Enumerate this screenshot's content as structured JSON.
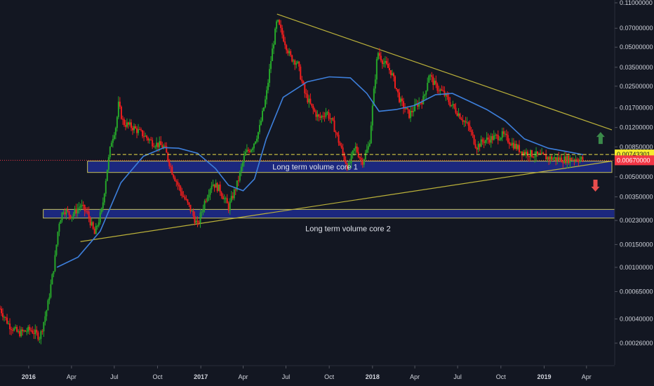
{
  "chart_data": {
    "type": "candlestick",
    "y_scale": "log",
    "ylim": [
      0.0002,
      0.11
    ],
    "x_range": [
      "2015-11-01",
      "2019-05-31"
    ],
    "x_ticks": [
      {
        "label": "2016",
        "date": "2016-01-01",
        "year": true
      },
      {
        "label": "Apr",
        "date": "2016-04-01"
      },
      {
        "label": "Jul",
        "date": "2016-07-01"
      },
      {
        "label": "Oct",
        "date": "2016-10-01"
      },
      {
        "label": "2017",
        "date": "2017-01-01",
        "year": true
      },
      {
        "label": "Apr",
        "date": "2017-04-01"
      },
      {
        "label": "Jul",
        "date": "2017-07-01"
      },
      {
        "label": "Oct",
        "date": "2017-10-01"
      },
      {
        "label": "2018",
        "date": "2018-01-01",
        "year": true
      },
      {
        "label": "Apr",
        "date": "2018-04-01"
      },
      {
        "label": "Jul",
        "date": "2018-07-01"
      },
      {
        "label": "Oct",
        "date": "2018-10-01"
      },
      {
        "label": "2019",
        "date": "2019-01-01",
        "year": true
      },
      {
        "label": "Apr",
        "date": "2019-04-01"
      }
    ],
    "y_ticks": [
      {
        "label": "0.11000000",
        "value": 0.11
      },
      {
        "label": "0.07000000",
        "value": 0.07
      },
      {
        "label": "0.05000000",
        "value": 0.05
      },
      {
        "label": "0.03500000",
        "value": 0.035
      },
      {
        "label": "0.02500000",
        "value": 0.025
      },
      {
        "label": "0.01700000",
        "value": 0.017
      },
      {
        "label": "0.01200000",
        "value": 0.012
      },
      {
        "label": "0.00850000",
        "value": 0.0085
      },
      {
        "label": "0.00500000",
        "value": 0.005
      },
      {
        "label": "0.00350000",
        "value": 0.0035
      },
      {
        "label": "0.00230000",
        "value": 0.0023
      },
      {
        "label": "0.00150000",
        "value": 0.0015
      },
      {
        "label": "0.00100000",
        "value": 0.001
      },
      {
        "label": "0.00065000",
        "value": 0.00065
      },
      {
        "label": "0.00040000",
        "value": 0.0004
      },
      {
        "label": "0.00026000",
        "value": 0.00026
      }
    ],
    "price_path": [
      [
        "2015-11-01",
        0.00048
      ],
      [
        "2015-11-20",
        0.00036
      ],
      [
        "2015-12-10",
        0.00031
      ],
      [
        "2016-01-05",
        0.00033
      ],
      [
        "2016-01-25",
        0.00029
      ],
      [
        "2016-02-10",
        0.0005
      ],
      [
        "2016-02-25",
        0.0011
      ],
      [
        "2016-03-05",
        0.0022
      ],
      [
        "2016-03-15",
        0.0028
      ],
      [
        "2016-04-01",
        0.0025
      ],
      [
        "2016-04-20",
        0.003
      ],
      [
        "2016-05-05",
        0.0026
      ],
      [
        "2016-05-20",
        0.0018
      ],
      [
        "2016-06-05",
        0.0028
      ],
      [
        "2016-06-15",
        0.0055
      ],
      [
        "2016-06-25",
        0.0095
      ],
      [
        "2016-07-05",
        0.0125
      ],
      [
        "2016-07-10",
        0.018
      ],
      [
        "2016-07-20",
        0.013
      ],
      [
        "2016-08-10",
        0.012
      ],
      [
        "2016-09-01",
        0.0105
      ],
      [
        "2016-09-20",
        0.0092
      ],
      [
        "2016-10-15",
        0.0085
      ],
      [
        "2016-11-01",
        0.0055
      ],
      [
        "2016-11-20",
        0.0038
      ],
      [
        "2016-12-10",
        0.0028
      ],
      [
        "2016-12-25",
        0.0021
      ],
      [
        "2017-01-10",
        0.0033
      ],
      [
        "2017-01-25",
        0.0045
      ],
      [
        "2017-02-10",
        0.004
      ],
      [
        "2017-03-01",
        0.0029
      ],
      [
        "2017-03-20",
        0.0045
      ],
      [
        "2017-04-05",
        0.0075
      ],
      [
        "2017-04-20",
        0.0085
      ],
      [
        "2017-05-05",
        0.0115
      ],
      [
        "2017-05-20",
        0.021
      ],
      [
        "2017-06-01",
        0.045
      ],
      [
        "2017-06-12",
        0.08
      ],
      [
        "2017-06-25",
        0.06
      ],
      [
        "2017-07-10",
        0.042
      ],
      [
        "2017-07-25",
        0.038
      ],
      [
        "2017-08-10",
        0.022
      ],
      [
        "2017-08-25",
        0.017
      ],
      [
        "2017-09-10",
        0.014
      ],
      [
        "2017-09-25",
        0.016
      ],
      [
        "2017-10-10",
        0.0125
      ],
      [
        "2017-10-25",
        0.0085
      ],
      [
        "2017-11-10",
        0.0058
      ],
      [
        "2017-11-25",
        0.0085
      ],
      [
        "2017-12-10",
        0.0065
      ],
      [
        "2017-12-25",
        0.0088
      ],
      [
        "2018-01-05",
        0.025
      ],
      [
        "2018-01-12",
        0.046
      ],
      [
        "2018-01-25",
        0.038
      ],
      [
        "2018-02-10",
        0.032
      ],
      [
        "2018-03-01",
        0.019
      ],
      [
        "2018-03-20",
        0.015
      ],
      [
        "2018-04-05",
        0.018
      ],
      [
        "2018-04-20",
        0.02
      ],
      [
        "2018-05-01",
        0.031
      ],
      [
        "2018-05-15",
        0.025
      ],
      [
        "2018-06-01",
        0.022
      ],
      [
        "2018-06-15",
        0.0185
      ],
      [
        "2018-07-05",
        0.015
      ],
      [
        "2018-07-25",
        0.012
      ],
      [
        "2018-08-10",
        0.0085
      ],
      [
        "2018-08-25",
        0.0095
      ],
      [
        "2018-09-15",
        0.01
      ],
      [
        "2018-10-05",
        0.0105
      ],
      [
        "2018-10-25",
        0.009
      ],
      [
        "2018-11-15",
        0.0078
      ],
      [
        "2018-12-10",
        0.0074
      ],
      [
        "2019-01-10",
        0.007
      ],
      [
        "2019-02-10",
        0.0068
      ],
      [
        "2019-03-10",
        0.0069
      ],
      [
        "2019-03-25",
        0.0068
      ]
    ],
    "moving_average": [
      [
        "2016-03-01",
        0.001
      ],
      [
        "2016-04-15",
        0.0012
      ],
      [
        "2016-06-01",
        0.0019
      ],
      [
        "2016-07-15",
        0.0045
      ],
      [
        "2016-09-01",
        0.0072
      ],
      [
        "2016-10-15",
        0.0084
      ],
      [
        "2016-11-15",
        0.0083
      ],
      [
        "2016-12-25",
        0.0076
      ],
      [
        "2017-02-01",
        0.0058
      ],
      [
        "2017-03-01",
        0.0043
      ],
      [
        "2017-04-01",
        0.0039
      ],
      [
        "2017-04-25",
        0.0048
      ],
      [
        "2017-05-20",
        0.0098
      ],
      [
        "2017-06-25",
        0.0205
      ],
      [
        "2017-08-15",
        0.027
      ],
      [
        "2017-10-01",
        0.0295
      ],
      [
        "2017-11-15",
        0.029
      ],
      [
        "2017-12-20",
        0.022
      ],
      [
        "2018-01-15",
        0.016
      ],
      [
        "2018-02-20",
        0.0165
      ],
      [
        "2018-04-01",
        0.0178
      ],
      [
        "2018-05-15",
        0.0215
      ],
      [
        "2018-06-20",
        0.022
      ],
      [
        "2018-07-25",
        0.0192
      ],
      [
        "2018-09-01",
        0.0165
      ],
      [
        "2018-10-10",
        0.0135
      ],
      [
        "2018-11-20",
        0.0098
      ],
      [
        "2019-01-10",
        0.0083
      ],
      [
        "2019-02-20",
        0.0078
      ],
      [
        "2019-03-25",
        0.0074
      ]
    ],
    "trendlines": [
      {
        "name": "descending",
        "color": "#bcb23a",
        "points": [
          [
            "2017-06-12",
            0.09
          ],
          [
            "2019-05-25",
            0.0115
          ]
        ]
      },
      {
        "name": "ascending",
        "color": "#bcb23a",
        "points": [
          [
            "2016-04-20",
            0.00158
          ],
          [
            "2019-05-25",
            0.0066
          ]
        ]
      }
    ],
    "zones": [
      {
        "label": "Long term volume core 1",
        "from": "2016-05-05",
        "to": "2019-05-25",
        "low": 0.0054,
        "high": 0.0066,
        "fill": "#1e2b8e",
        "stroke": "#c7c25a"
      },
      {
        "label": "Long term volume core 2",
        "from": "2016-02-01",
        "to": "2019-06-10",
        "low": 0.0024,
        "high": 0.0028,
        "fill": "#1e2b8e",
        "stroke": "#c7c25a"
      }
    ],
    "horizontal_lines": [
      {
        "value": 0.007433,
        "label": "0.00743301",
        "color": "#f0e24a",
        "style": "dashed",
        "tag_bg": "#f6ec2c",
        "tag_fg": "#131722"
      },
      {
        "value": 0.0067,
        "label": "0.00670000",
        "color": "#f23645",
        "style": "dotted",
        "tag_bg": "#f23645",
        "tag_fg": "#ffffff"
      }
    ],
    "arrows": [
      {
        "direction": "up",
        "date": "2019-05-01",
        "value": 0.0099,
        "color": "#3b8a4a"
      },
      {
        "direction": "down",
        "date": "2019-04-20",
        "value": 0.0043,
        "color": "#e84d4d"
      }
    ],
    "grid": false
  },
  "colors": {
    "background": "#131722",
    "up": "#26a62a",
    "down": "#f01e1e",
    "ma": "#3d7fdb",
    "axis_text": "#d1d4dc"
  }
}
